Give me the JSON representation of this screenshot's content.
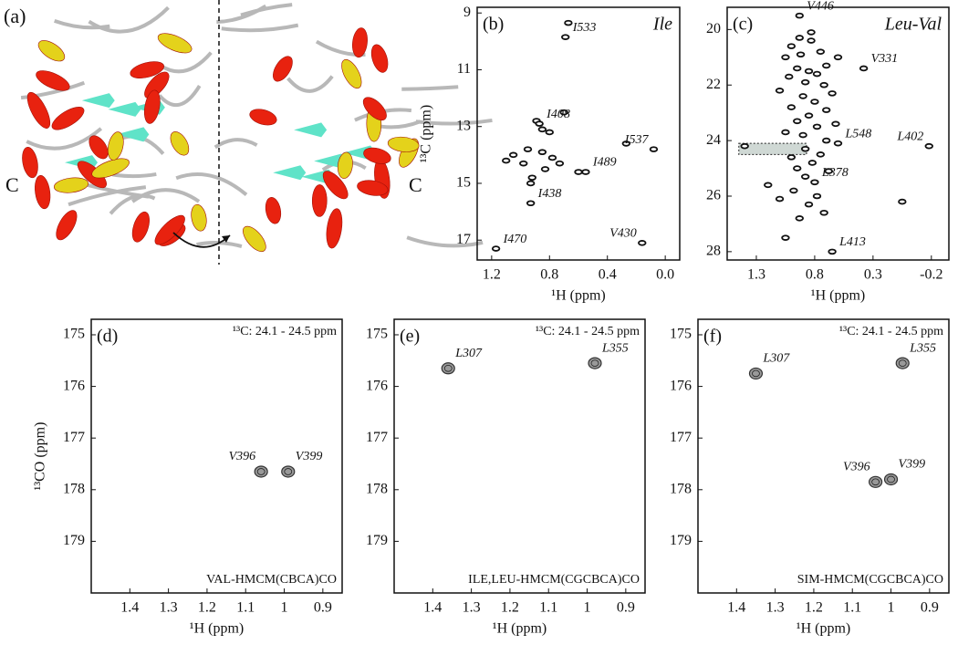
{
  "panel_a": {
    "label": "(a)",
    "termini": [
      "C",
      "C"
    ]
  },
  "chart_data": [
    {
      "type": "scatter",
      "panel": "(b)",
      "annotation": "Ile",
      "xlabel": "¹H (ppm)",
      "ylabel": "¹³C (ppm)",
      "xlim": [
        1.3,
        -0.1
      ],
      "xticks": [
        1.2,
        0.8,
        0.4,
        {
          "value": 0,
          "label": "0.0"
        }
      ],
      "ylim": [
        8.8,
        17.7
      ],
      "yticks": [
        9,
        11,
        13,
        15,
        17
      ],
      "color": "#111111",
      "x": [
        0.67,
        0.89,
        0.85,
        0.8,
        0.95,
        0.85,
        1.05,
        1.1,
        0.98,
        0.78,
        0.73,
        0.83,
        0.6,
        0.27,
        0.92,
        0.93,
        0.7
      ],
      "values": [
        9.35,
        12.8,
        13.1,
        13.2,
        13.8,
        13.9,
        14.0,
        14.2,
        14.3,
        14.1,
        14.3,
        14.5,
        14.6,
        13.6,
        14.8,
        15.0,
        12.5
      ],
      "assigned": {
        "labels": [
          "I533",
          "I408",
          "I537",
          "I489",
          "I438",
          "I470",
          "V430"
        ],
        "x": [
          0.69,
          0.87,
          0.08,
          0.55,
          0.93,
          1.17,
          0.16
        ],
        "y": [
          9.85,
          12.9,
          13.8,
          14.6,
          15.7,
          17.3,
          17.1
        ]
      }
    },
    {
      "type": "scatter",
      "panel": "(c)",
      "annotation": "Leu-Val",
      "xlabel": "¹H (ppm)",
      "xlim": [
        1.55,
        -0.35
      ],
      "xticks": [
        1.3,
        0.8,
        0.3,
        -0.2
      ],
      "ylim": [
        19.2,
        28.3
      ],
      "yticks": [
        20,
        22,
        24,
        26,
        28
      ],
      "color": "#111111",
      "highlight": {
        "x": [
          1.45,
          0.87
        ],
        "y": [
          24.1,
          24.5
        ]
      },
      "x": [
        0.93,
        0.83,
        0.83,
        1.0,
        0.75,
        0.92,
        1.05,
        0.6,
        0.7,
        0.95,
        0.85,
        0.78,
        1.02,
        0.88,
        0.72,
        1.1,
        0.65,
        0.9,
        0.8,
        1.0,
        0.7,
        0.85,
        0.95,
        0.62,
        0.78,
        1.05,
        0.9,
        0.7,
        1.4,
        0.88,
        0.75,
        1.0,
        0.82,
        0.95,
        0.68,
        0.88,
        1.2,
        0.98,
        0.78,
        0.85,
        1.1,
        0.93,
        1.05,
        0.72,
        0.05
      ],
      "values": [
        20.3,
        20.1,
        20.4,
        20.6,
        20.8,
        20.9,
        21.0,
        21.0,
        21.3,
        21.4,
        21.5,
        21.6,
        21.7,
        21.9,
        22.0,
        22.2,
        22.3,
        22.4,
        22.6,
        22.8,
        22.9,
        23.1,
        23.3,
        23.4,
        23.5,
        23.7,
        23.8,
        24.0,
        24.2,
        24.3,
        24.5,
        24.6,
        24.8,
        25.0,
        25.1,
        25.3,
        25.6,
        25.8,
        26.0,
        26.3,
        26.1,
        26.8,
        27.5,
        26.6,
        26.2
      ],
      "assigned": {
        "labels": [
          "V446",
          "V331",
          "L548",
          "L402",
          "L378",
          "L413"
        ],
        "x": [
          0.93,
          0.38,
          0.6,
          -0.18,
          0.8,
          0.65
        ],
        "y": [
          19.5,
          21.4,
          24.1,
          24.2,
          25.5,
          28.0
        ]
      }
    },
    {
      "type": "scatter",
      "panel": "(d)",
      "header": "¹³C: 24.1 - 24.5 ppm",
      "footer": "VAL-HMCM(CBCA)CO",
      "xlabel": "¹H (ppm)",
      "ylabel": "¹³CO (ppm)",
      "xlim": [
        1.5,
        0.85
      ],
      "xticks": [
        1.4,
        1.3,
        1.2,
        1.1,
        1.0,
        0.9
      ],
      "ylim": [
        174.7,
        180.0
      ],
      "yticks": [
        175,
        176,
        177,
        178,
        179
      ],
      "color": "#555555",
      "assigned": {
        "labels": [
          "V396",
          "V399"
        ],
        "x": [
          1.06,
          0.99
        ],
        "y": [
          177.65,
          177.65
        ]
      }
    },
    {
      "type": "scatter",
      "panel": "(e)",
      "header": "¹³C: 24.1 - 24.5 ppm",
      "footer": "ILE,LEU-HMCM(CGCBCA)CO",
      "xlabel": "¹H (ppm)",
      "xlim": [
        1.5,
        0.85
      ],
      "xticks": [
        1.4,
        1.3,
        1.2,
        1.1,
        1.0,
        0.9
      ],
      "ylim": [
        174.7,
        180.0
      ],
      "yticks": [
        175,
        176,
        177,
        178,
        179
      ],
      "color": "#555555",
      "assigned": {
        "labels": [
          "L307",
          "L355"
        ],
        "x": [
          1.36,
          0.98
        ],
        "y": [
          175.65,
          175.55
        ]
      }
    },
    {
      "type": "scatter",
      "panel": "(f)",
      "header": "¹³C: 24.1 - 24.5 ppm",
      "footer": "SIM-HMCM(CGCBCA)CO",
      "xlabel": "¹H (ppm)",
      "xlim": [
        1.5,
        0.85
      ],
      "xticks": [
        1.4,
        1.3,
        1.2,
        1.1,
        1.0,
        0.9
      ],
      "ylim": [
        174.7,
        180.0
      ],
      "yticks": [
        175,
        176,
        177,
        178,
        179
      ],
      "color": "#555555",
      "assigned": {
        "labels": [
          "L307",
          "L355",
          "V396",
          "V399"
        ],
        "x": [
          1.35,
          0.97,
          1.04,
          1.0
        ],
        "y": [
          175.75,
          175.55,
          177.85,
          177.8
        ]
      }
    }
  ]
}
